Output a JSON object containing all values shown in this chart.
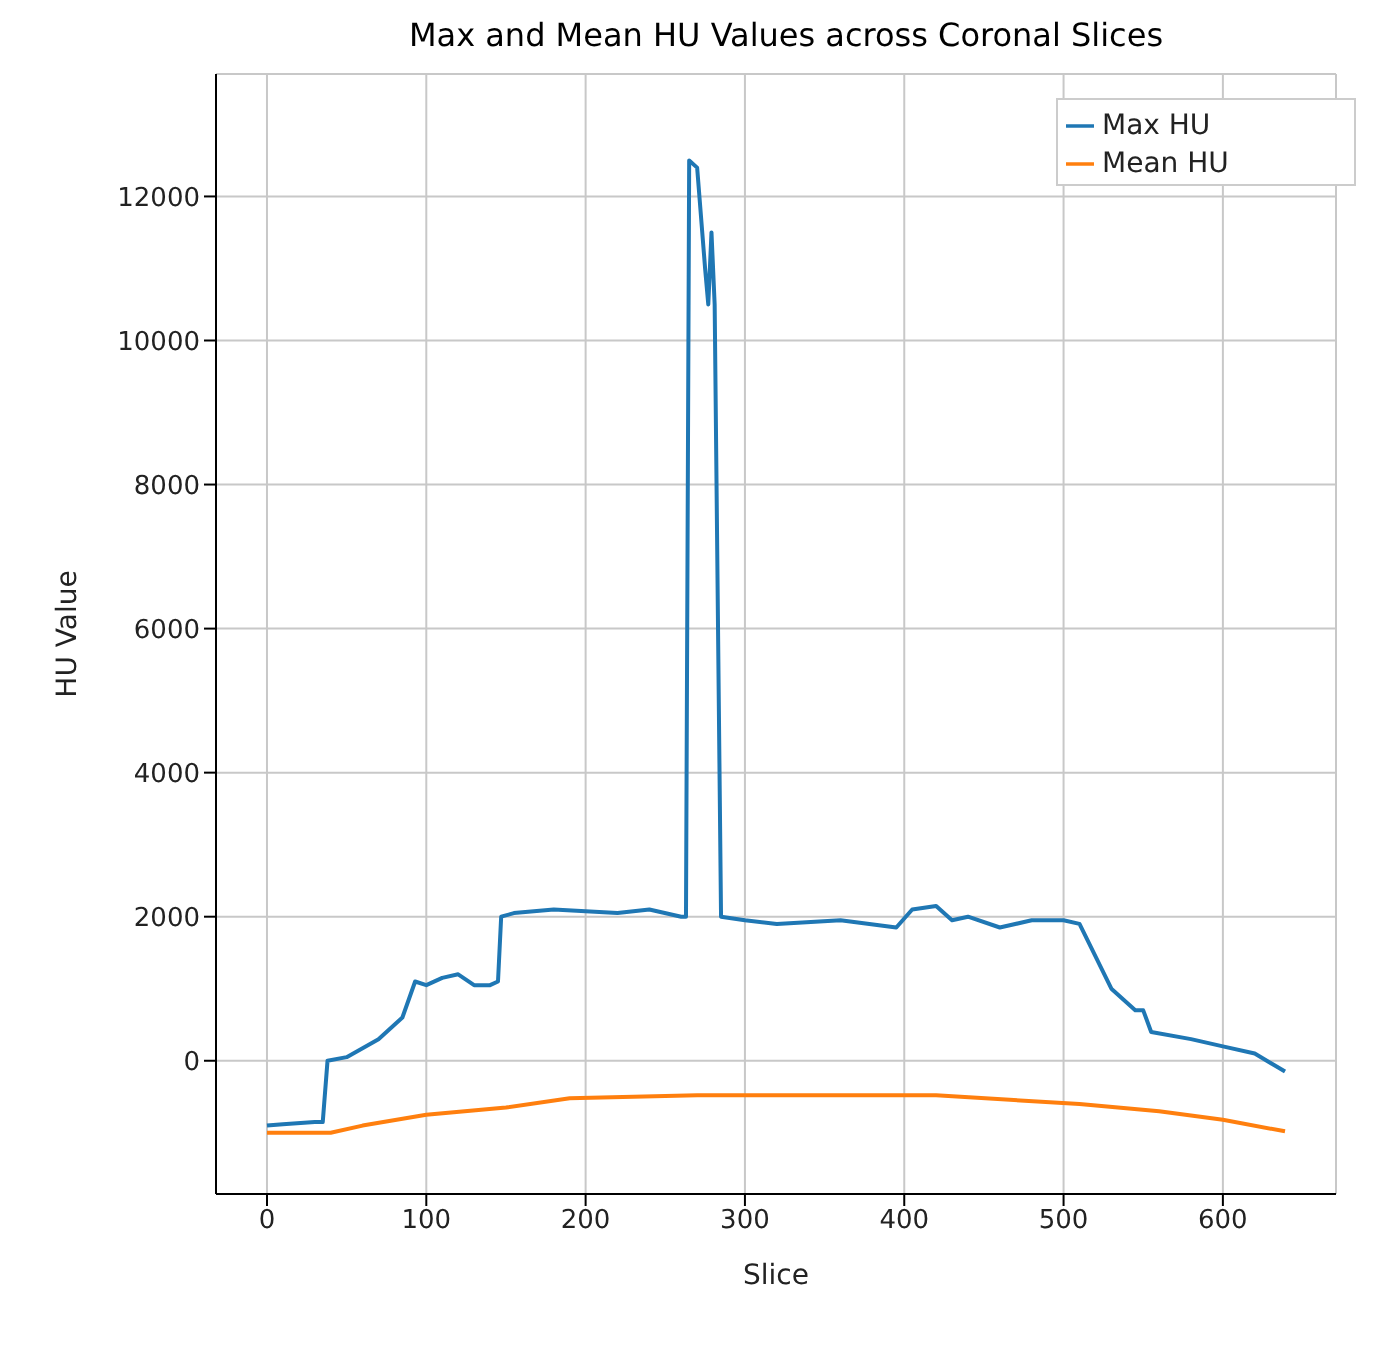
{
  "chart_data": {
    "type": "line",
    "title": "Max and Mean HU Values across Coronal Slices",
    "xlabel": "Slice",
    "ylabel": "HU Value",
    "xlim": [
      -32,
      671
    ],
    "xticks": [
      0,
      100,
      200,
      300,
      400,
      500,
      600
    ],
    "ylim": [
      -1850,
      13700
    ],
    "yticks": [
      0,
      2000,
      4000,
      6000,
      8000,
      10000,
      12000
    ],
    "grid": true,
    "legend": "top right",
    "series": [
      {
        "name": "Max HU",
        "color": "#1f77b4",
        "x": [
          0,
          10,
          30,
          35,
          38,
          50,
          70,
          85,
          93,
          100,
          110,
          120,
          130,
          140,
          145,
          147,
          155,
          180,
          220,
          240,
          260,
          263,
          265,
          270,
          275,
          277,
          279,
          281,
          285,
          300,
          320,
          360,
          395,
          405,
          420,
          430,
          440,
          460,
          480,
          500,
          510,
          530,
          545,
          550,
          555,
          580,
          600,
          620,
          639
        ],
        "values": [
          -900,
          -880,
          -850,
          -850,
          0,
          50,
          300,
          600,
          1100,
          1050,
          1150,
          1200,
          1050,
          1050,
          1100,
          2000,
          2050,
          2100,
          2050,
          2100,
          2000,
          2000,
          12500,
          12400,
          11000,
          10500,
          11500,
          10500,
          2000,
          1950,
          1900,
          1950,
          1850,
          2100,
          2150,
          1950,
          2000,
          1850,
          1950,
          1950,
          1900,
          1000,
          700,
          700,
          400,
          300,
          200,
          100,
          -150
        ]
      },
      {
        "name": "Mean HU",
        "color": "#ff7f0e",
        "x": [
          0,
          20,
          40,
          60,
          100,
          150,
          190,
          270,
          420,
          510,
          560,
          600,
          639
        ],
        "values": [
          -1000,
          -1000,
          -1000,
          -900,
          -750,
          -650,
          -520,
          -480,
          -480,
          -600,
          -700,
          -820,
          -980
        ]
      }
    ]
  }
}
